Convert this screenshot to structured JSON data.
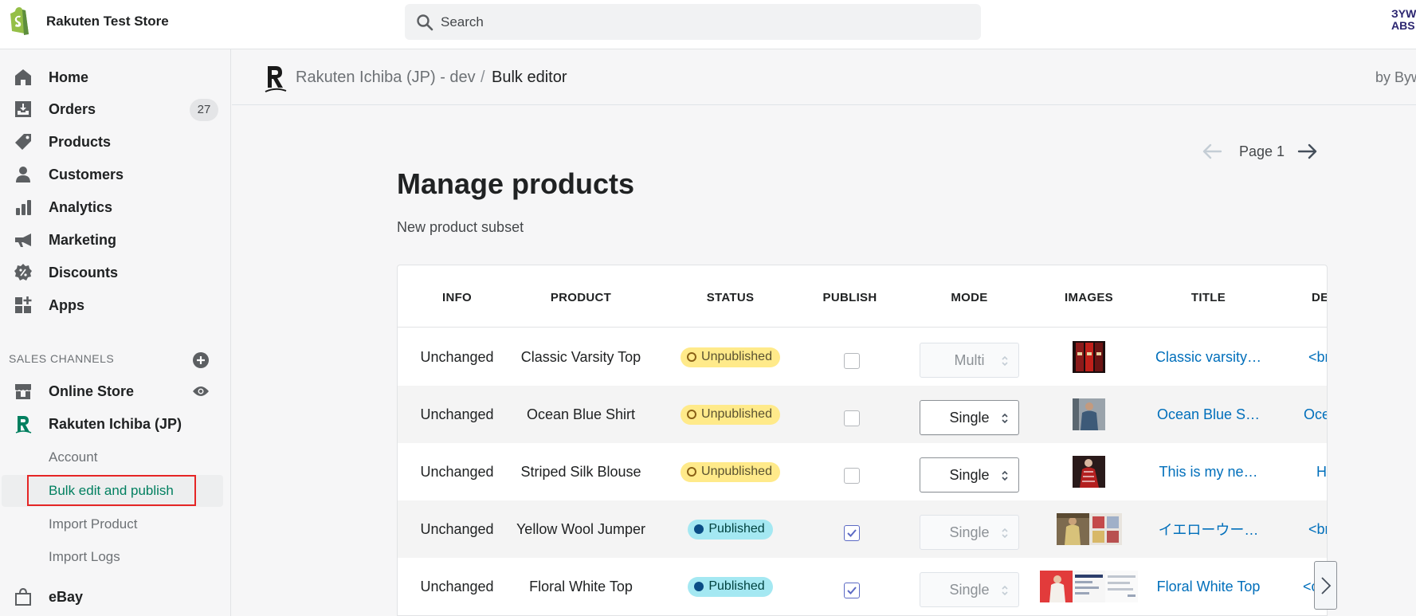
{
  "topbar": {
    "store_name": "Rakuten Test Store",
    "search_placeholder": "Search",
    "avatar_text_1": "ЗYW",
    "avatar_text_2": "ABS"
  },
  "sidebar": {
    "items": [
      {
        "label": "Home",
        "icon": "home-icon"
      },
      {
        "label": "Orders",
        "icon": "orders-icon",
        "badge": "27"
      },
      {
        "label": "Products",
        "icon": "tag-icon"
      },
      {
        "label": "Customers",
        "icon": "person-icon"
      },
      {
        "label": "Analytics",
        "icon": "bar-chart-icon"
      },
      {
        "label": "Marketing",
        "icon": "megaphone-icon"
      },
      {
        "label": "Discounts",
        "icon": "discount-icon"
      },
      {
        "label": "Apps",
        "icon": "apps-icon"
      }
    ],
    "sales_channels_label": "SALES CHANNELS",
    "channels": [
      {
        "label": "Online Store",
        "icon": "store-icon"
      },
      {
        "label": "Rakuten Ichiba (JP)",
        "icon": "rakuten-icon"
      }
    ],
    "sub_items": [
      "Account",
      "Bulk edit and publish",
      "Import Product",
      "Import Logs"
    ],
    "ebay_label": "eBay"
  },
  "header": {
    "app_name": "Rakuten Ichiba (JP) - dev",
    "separator": "/",
    "page": "Bulk editor",
    "by_label": "by Byw"
  },
  "pager": {
    "label": "Page 1"
  },
  "main": {
    "title": "Manage products",
    "subtitle": "New product subset"
  },
  "table": {
    "columns": [
      "INFO",
      "PRODUCT",
      "STATUS",
      "PUBLISH",
      "MODE",
      "IMAGES",
      "TITLE",
      "DE"
    ],
    "rows": [
      {
        "info": "Unchanged",
        "product": "Classic Varsity Top",
        "status": "Unpublished",
        "published": false,
        "mode": "Multi",
        "mode_disabled": true,
        "title": "Classic varsity…",
        "desc": "<br"
      },
      {
        "info": "Unchanged",
        "product": "Ocean Blue Shirt",
        "status": "Unpublished",
        "published": false,
        "mode": "Single",
        "mode_disabled": false,
        "title": "Ocean Blue S…",
        "desc": "Oce"
      },
      {
        "info": "Unchanged",
        "product": "Striped Silk Blouse",
        "status": "Unpublished",
        "published": false,
        "mode": "Single",
        "mode_disabled": false,
        "title": "This is my ne…",
        "desc": "H"
      },
      {
        "info": "Unchanged",
        "product": "Yellow Wool Jumper",
        "status": "Published",
        "published": true,
        "mode": "Single",
        "mode_disabled": true,
        "title": "イエローウー…",
        "desc": "<br"
      },
      {
        "info": "Unchanged",
        "product": "Floral White Top",
        "status": "Published",
        "published": true,
        "mode": "Single",
        "mode_disabled": true,
        "title": "Floral White Top",
        "desc": "<c"
      }
    ]
  },
  "colors": {
    "accent_green": "#007f5f",
    "link_blue": "#006fbb",
    "highlight_red": "#e52525",
    "unpublished_bg": "#ffea8a",
    "published_bg": "#a4e8f2"
  }
}
